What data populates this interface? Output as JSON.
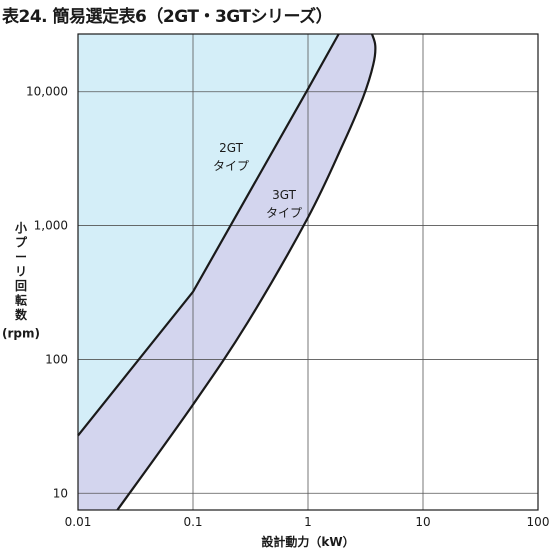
{
  "chart_data": {
    "type": "area",
    "title": "表24. 簡易選定表6（2GT・3GTシリーズ）",
    "xlabel": "設計動力（kW）",
    "ylabel": "小プーリ回転数（rpm）",
    "xscale": "log",
    "yscale": "log",
    "xlim": [
      0.01,
      100
    ],
    "ylim": [
      7.5,
      27000
    ],
    "grid": true,
    "x_ticks": [
      0.01,
      0.1,
      1,
      10,
      100
    ],
    "x_tick_labels": [
      "0.01",
      "0.1",
      "1",
      "10",
      "100"
    ],
    "y_ticks": [
      10,
      100,
      1000,
      10000
    ],
    "y_tick_labels": [
      "10",
      "100",
      "1,000",
      "10,000"
    ],
    "series": [
      {
        "name": "2GT\nタイプ",
        "color": "#d4eef8",
        "boundary": {
          "x": [
            0.01,
            0.1,
            1,
            1.85
          ],
          "y": [
            27,
            320,
            10500,
            27000
          ]
        }
      },
      {
        "name": "3GT\nタイプ",
        "color": "#d3d5ee",
        "upper_boundary": {
          "x": [
            0.01,
            0.1,
            1,
            1.85
          ],
          "y": [
            27,
            320,
            10500,
            27000
          ]
        },
        "outer_boundary": {
          "x": [
            0.022,
            0.1,
            0.3,
            1,
            2,
            3,
            3.7,
            3.85,
            3.6
          ],
          "y": [
            7.5,
            46,
            190,
            1150,
            4000,
            9000,
            16000,
            22000,
            27000
          ]
        }
      }
    ]
  }
}
